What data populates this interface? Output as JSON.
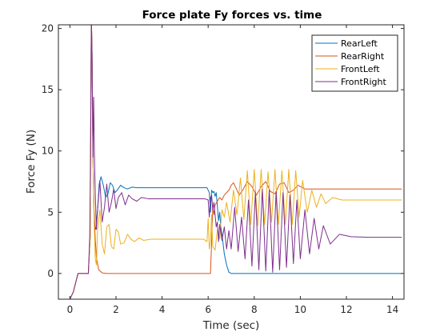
{
  "chart_data": {
    "type": "line",
    "title": "Force plate Fy forces vs. time",
    "xlabel": "Time (sec)",
    "ylabel": "Force Fy (N)",
    "xlim": [
      -0.5,
      14.5
    ],
    "ylim": [
      -2.1,
      20.3
    ],
    "xticks": [
      0,
      2,
      4,
      6,
      8,
      10,
      12,
      14
    ],
    "yticks": [
      0,
      5,
      10,
      15,
      20
    ],
    "grid": false,
    "legend_position": "top-right",
    "series": [
      {
        "name": "RearLeft",
        "color": "#0072BD",
        "x": [
          0,
          0.15,
          0.35,
          0.8,
          0.88,
          0.9,
          0.93,
          0.96,
          1.0,
          1.04,
          1.08,
          1.12,
          1.2,
          1.27,
          1.35,
          1.45,
          1.55,
          1.65,
          1.75,
          1.85,
          1.95,
          2.05,
          2.2,
          2.35,
          2.5,
          2.7,
          2.9,
          3.2,
          3.6,
          4.0,
          4.5,
          5.0,
          5.5,
          5.8,
          5.95,
          6.05,
          6.1,
          6.15,
          6.2,
          6.25,
          6.3,
          6.35,
          6.4,
          6.45,
          6.5,
          6.55,
          6.6,
          6.65,
          6.7,
          6.8,
          6.9,
          7.0,
          7.5,
          8.0,
          9.0,
          10.0,
          11.0,
          12.0,
          13.0,
          14.4
        ],
        "y": [
          -2.1,
          -1.5,
          0,
          0,
          3,
          11,
          21,
          18,
          9.5,
          5.5,
          3.8,
          3.6,
          5.2,
          7.3,
          7.9,
          7.2,
          6.2,
          6.5,
          7.4,
          7.2,
          6.6,
          6.8,
          7.2,
          7.0,
          6.9,
          7.05,
          7.0,
          7.0,
          7.0,
          7.0,
          7.0,
          7.0,
          7.0,
          7.0,
          7.0,
          6.6,
          5.0,
          6.8,
          6.6,
          6.7,
          6.3,
          6.6,
          5.5,
          4.3,
          5.0,
          3.8,
          3.2,
          2.4,
          1.6,
          0.7,
          0.1,
          0,
          0,
          0,
          0,
          0,
          0,
          0,
          0,
          0
        ]
      },
      {
        "name": "RearRight",
        "color": "#D95319",
        "x": [
          0,
          0.15,
          0.35,
          0.8,
          0.88,
          0.9,
          0.93,
          0.96,
          1.0,
          1.05,
          1.1,
          1.15,
          1.25,
          1.4,
          1.6,
          2.0,
          3.0,
          4.0,
          5.0,
          6.0,
          6.1,
          6.15,
          6.2,
          6.25,
          6.3,
          6.4,
          6.5,
          6.6,
          6.7,
          6.8,
          6.9,
          7.0,
          7.1,
          7.2,
          7.35,
          7.5,
          7.7,
          7.9,
          8.1,
          8.3,
          8.5,
          8.7,
          8.9,
          9.1,
          9.3,
          9.5,
          9.7,
          9.9,
          10.2,
          10.5,
          11.0,
          12.0,
          13.0,
          14.4
        ],
        "y": [
          -2.1,
          -1.5,
          0,
          0,
          3,
          11,
          21,
          18,
          9.5,
          5,
          2.8,
          1.3,
          0.3,
          0.05,
          0,
          0,
          0,
          0,
          0,
          0,
          0,
          2.5,
          5.4,
          4.8,
          5.6,
          5.9,
          6.2,
          6.0,
          6.4,
          6.6,
          6.8,
          7.2,
          7.4,
          7.0,
          6.4,
          6.8,
          7.5,
          7.1,
          6.4,
          7.1,
          7.5,
          6.7,
          6.5,
          7.3,
          7.4,
          6.6,
          6.8,
          7.2,
          6.9,
          6.9,
          6.9,
          6.9,
          6.9,
          6.9
        ]
      },
      {
        "name": "FrontLeft",
        "color": "#EDB120",
        "x": [
          0,
          0.15,
          0.35,
          0.8,
          0.88,
          0.9,
          0.93,
          0.96,
          1.0,
          1.05,
          1.1,
          1.15,
          1.2,
          1.3,
          1.4,
          1.5,
          1.6,
          1.7,
          1.8,
          1.9,
          2.0,
          2.1,
          2.2,
          2.35,
          2.5,
          2.65,
          2.8,
          3.0,
          3.2,
          3.5,
          4.0,
          4.5,
          5.0,
          5.5,
          5.8,
          5.95,
          6.0,
          6.05,
          6.1,
          6.15,
          6.2,
          6.3,
          6.4,
          6.5,
          6.6,
          6.7,
          6.8,
          6.95,
          7.1,
          7.25,
          7.4,
          7.55,
          7.7,
          7.85,
          8.0,
          8.15,
          8.3,
          8.45,
          8.6,
          8.75,
          8.9,
          9.05,
          9.2,
          9.35,
          9.5,
          9.65,
          9.8,
          9.95,
          10.1,
          10.3,
          10.5,
          10.7,
          10.9,
          11.1,
          11.4,
          11.8,
          12.5,
          13.5,
          14.4
        ],
        "y": [
          -2.1,
          -1.5,
          0,
          0,
          3,
          11,
          21,
          18,
          9.5,
          4.2,
          1.2,
          0.7,
          3.6,
          5.2,
          2.4,
          1.6,
          3.8,
          4.0,
          2.2,
          2.0,
          3.6,
          3.4,
          2.4,
          2.5,
          3.2,
          2.8,
          2.6,
          2.9,
          2.7,
          2.8,
          2.8,
          2.8,
          2.8,
          2.8,
          2.8,
          2.6,
          4.5,
          2.0,
          2.6,
          4.8,
          2.2,
          1.9,
          3.6,
          2.8,
          5.2,
          4.6,
          5.8,
          4.2,
          6.8,
          4.8,
          7.8,
          4.4,
          8.4,
          4.0,
          8.5,
          3.9,
          8.5,
          4.0,
          8.3,
          4.2,
          8.5,
          4.0,
          8.4,
          4.0,
          8.5,
          4.0,
          8.4,
          4.6,
          7.6,
          5.0,
          6.8,
          5.4,
          6.5,
          5.7,
          6.2,
          6.0,
          6.0,
          6.0,
          6.0
        ]
      },
      {
        "name": "FrontRight",
        "color": "#7E2F8E",
        "x": [
          0,
          0.15,
          0.35,
          0.8,
          0.86,
          0.9,
          0.93,
          0.96,
          1.0,
          1.03,
          1.06,
          1.1,
          1.15,
          1.2,
          1.3,
          1.4,
          1.5,
          1.6,
          1.7,
          1.8,
          1.9,
          2.0,
          2.1,
          2.25,
          2.4,
          2.55,
          2.7,
          2.9,
          3.1,
          3.4,
          3.8,
          4.2,
          5.0,
          5.6,
          5.85,
          6.0,
          6.05,
          6.1,
          6.15,
          6.2,
          6.25,
          6.3,
          6.35,
          6.4,
          6.45,
          6.5,
          6.6,
          6.7,
          6.8,
          6.9,
          7.0,
          7.15,
          7.3,
          7.45,
          7.6,
          7.75,
          7.9,
          8.05,
          8.2,
          8.35,
          8.5,
          8.65,
          8.8,
          8.95,
          9.1,
          9.25,
          9.4,
          9.55,
          9.7,
          9.85,
          10.0,
          10.2,
          10.4,
          10.6,
          10.8,
          11.0,
          11.3,
          11.7,
          12.2,
          13.0,
          14.4
        ],
        "y": [
          -2.1,
          -1.5,
          0,
          0,
          3,
          11,
          21,
          18,
          9.5,
          14.4,
          10,
          6.5,
          3.6,
          5.2,
          7.6,
          4.2,
          5.4,
          7.3,
          5.0,
          5.8,
          6.9,
          5.3,
          6.2,
          6.6,
          5.6,
          6.4,
          6.1,
          5.9,
          6.2,
          6.1,
          6.1,
          6.1,
          6.1,
          6.1,
          6.1,
          6.0,
          4.6,
          6.2,
          6.4,
          5.2,
          5.8,
          4.8,
          3.8,
          4.2,
          2.6,
          4.0,
          2.7,
          3.8,
          2.0,
          3.5,
          2.0,
          5.4,
          1.8,
          4.6,
          1.2,
          6.0,
          0.6,
          6.6,
          0.3,
          6.9,
          0.2,
          6.8,
          0.1,
          6.7,
          0.3,
          6.6,
          0.5,
          6.4,
          0.8,
          6.0,
          1.2,
          5.2,
          1.6,
          4.5,
          2.0,
          3.9,
          2.4,
          3.2,
          3.0,
          2.95,
          2.95
        ]
      }
    ]
  }
}
